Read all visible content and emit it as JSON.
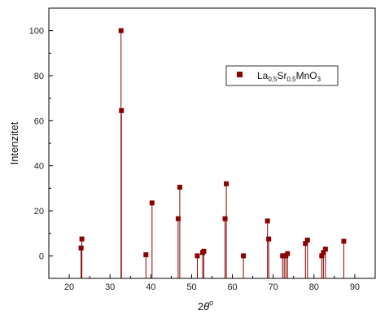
{
  "chart_data": {
    "type": "scatter",
    "style": "stem",
    "marker": "square",
    "color": "#8b0000",
    "ylabel": "Intenzitet",
    "xlabel_main": "2",
    "xlabel_theta": "θ",
    "xlabel_sup": "o",
    "xlim": [
      15,
      95
    ],
    "ylim": [
      -10,
      110
    ],
    "xticks": [
      20,
      30,
      40,
      50,
      60,
      70,
      80,
      90
    ],
    "yticks": [
      0,
      20,
      40,
      60,
      80,
      100
    ],
    "grid": false,
    "legend_position": "top-right",
    "legend": {
      "parts": [
        "La",
        "0,5",
        "Sr",
        "0,5",
        "MnO",
        "3"
      ]
    },
    "series": [
      {
        "x": [
          22.9,
          23.1,
          32.7,
          32.8,
          38.8,
          40.3,
          46.7,
          47.1,
          51.4,
          52.7,
          53.0,
          58.2,
          58.5,
          62.7,
          68.6,
          68.9,
          72.3,
          72.7,
          73.1,
          73.5,
          77.9,
          78.4,
          81.9,
          82.3,
          82.8,
          87.3
        ],
        "y": [
          3.5,
          7.5,
          100,
          64.5,
          0.5,
          23.5,
          16.5,
          30.5,
          0,
          1.5,
          2,
          16.5,
          32,
          0,
          15.5,
          7.5,
          0,
          0,
          0,
          1,
          5.5,
          7,
          0,
          1.5,
          3,
          6.5
        ]
      }
    ]
  }
}
